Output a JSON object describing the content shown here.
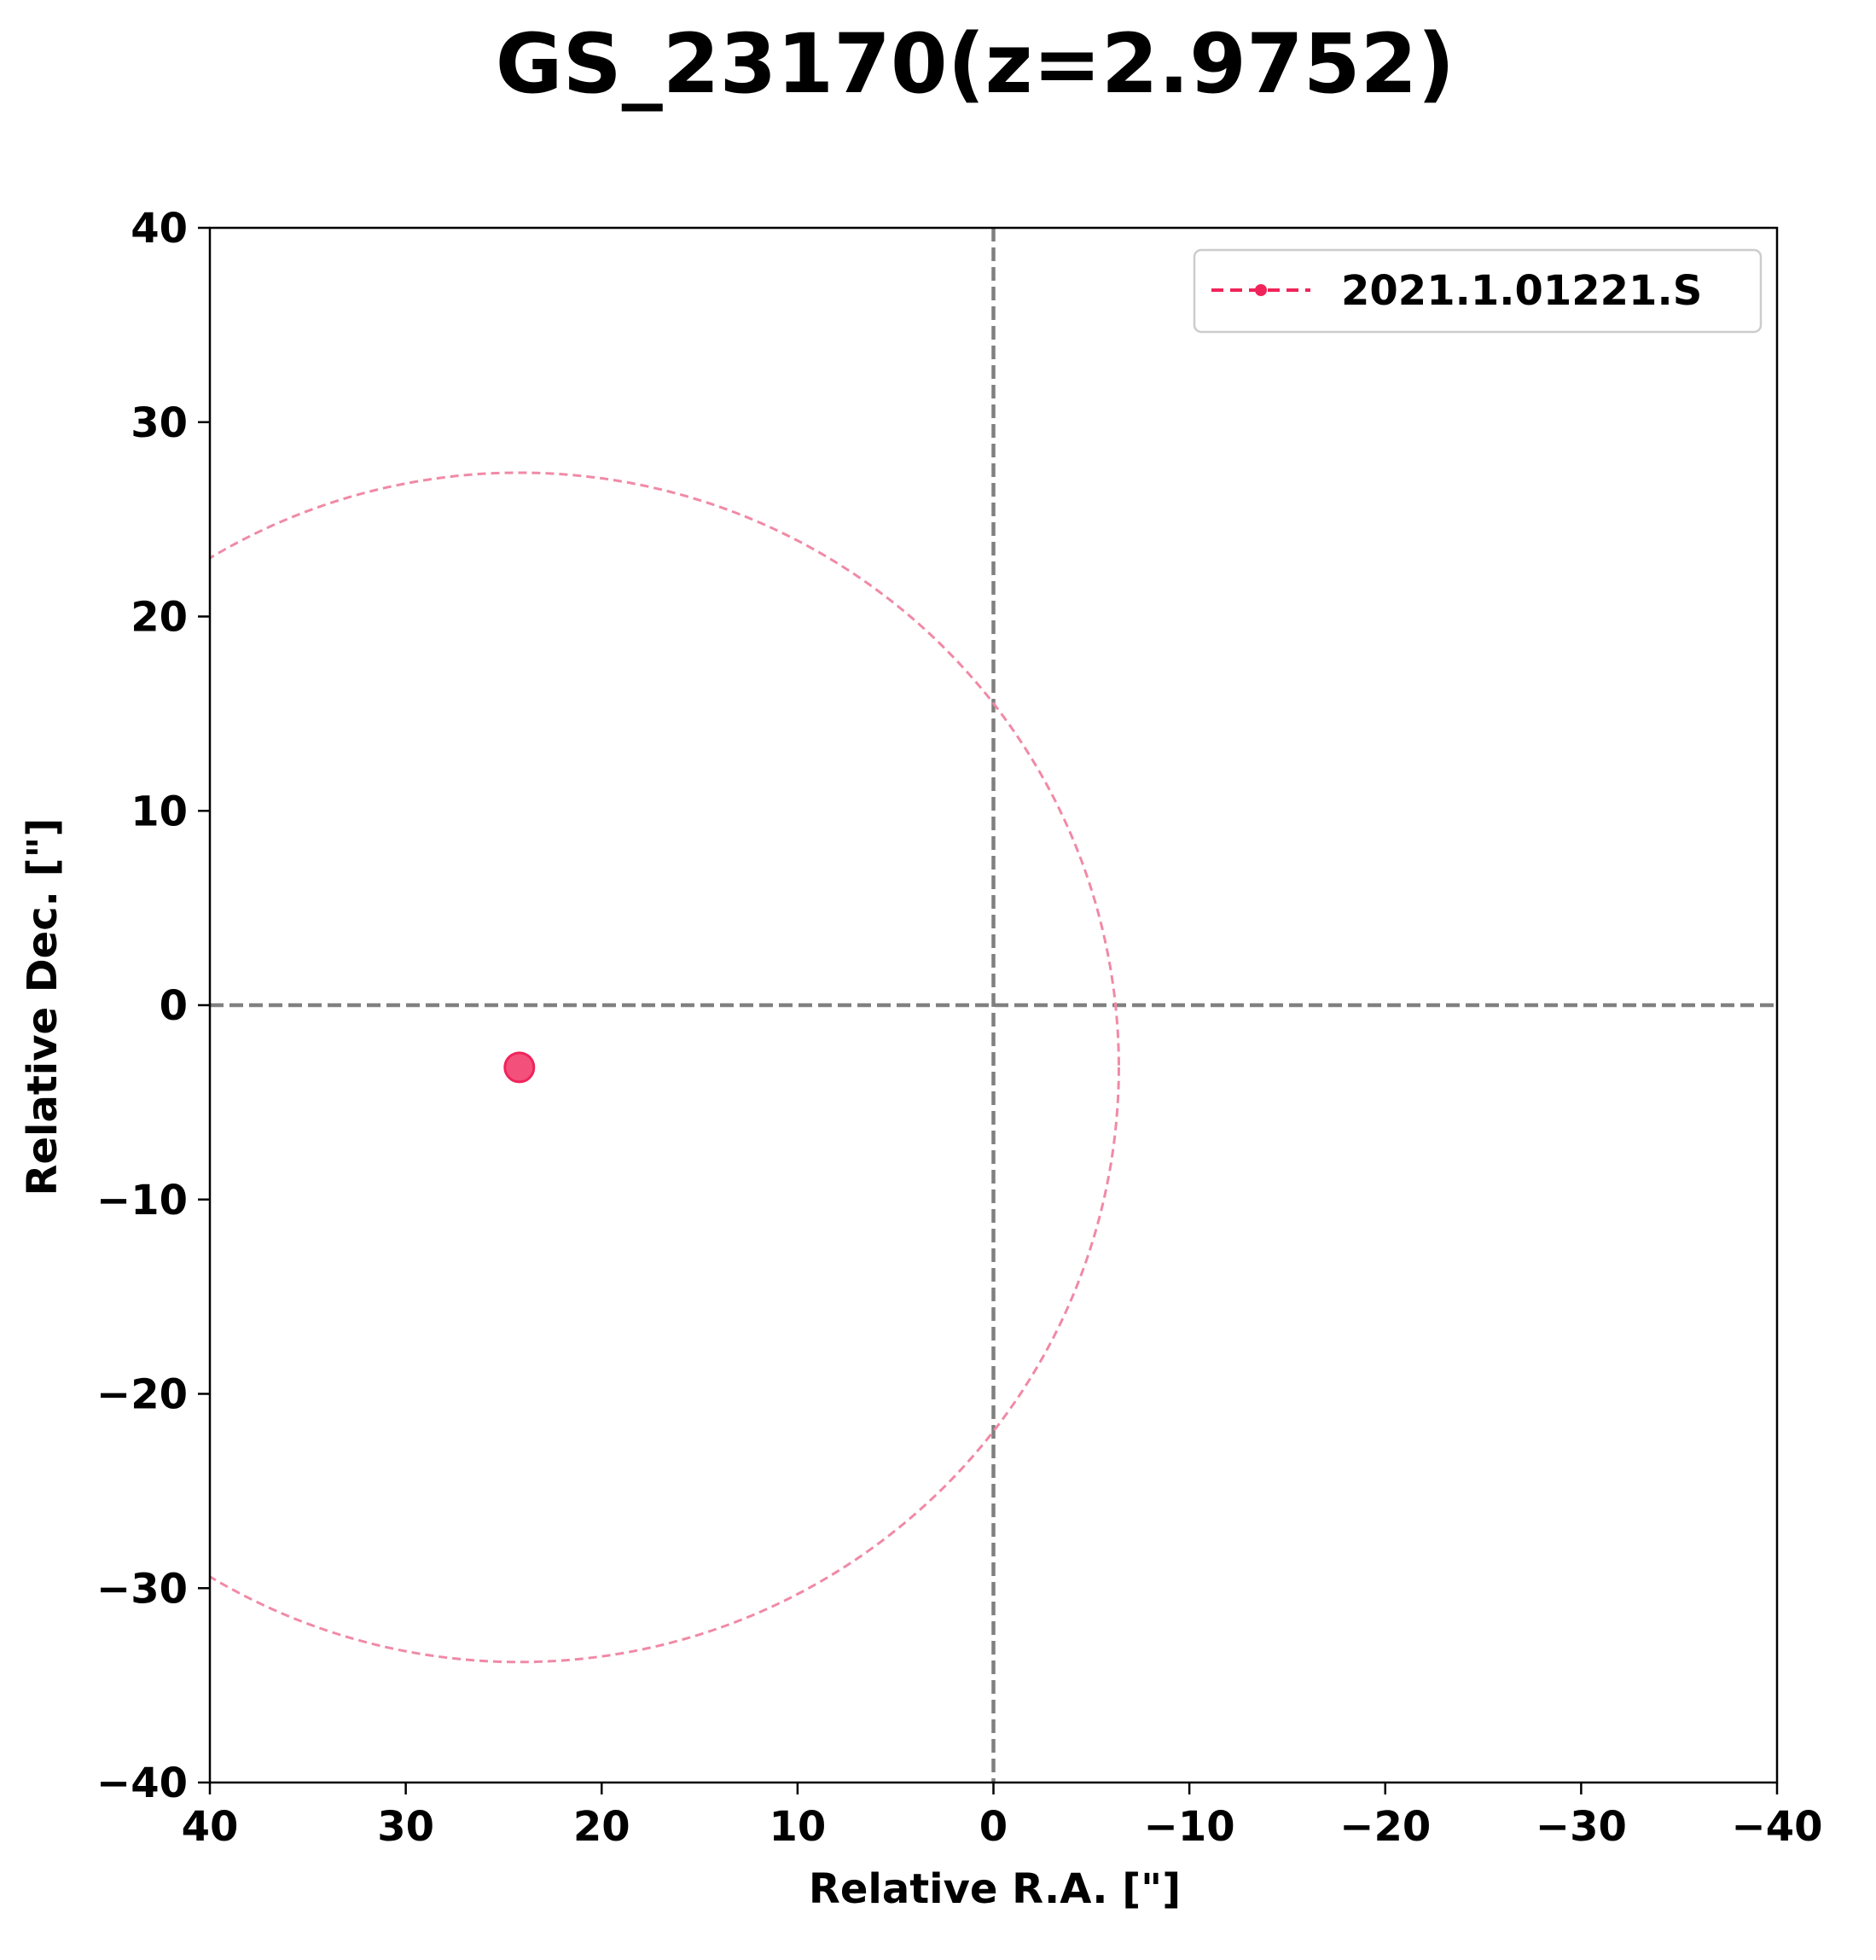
{
  "chart_data": {
    "type": "scatter",
    "title": "GS_23170(z=2.9752)",
    "xlabel": "Relative R.A. [\"]",
    "ylabel": "Relative Dec. [\"]",
    "xlim": [
      40,
      -40
    ],
    "ylim": [
      -40,
      40
    ],
    "x_inverted": true,
    "xticks": [
      40,
      30,
      20,
      10,
      0,
      -10,
      -20,
      -30,
      -40
    ],
    "yticks": [
      40,
      30,
      20,
      10,
      0,
      -10,
      -20,
      -30,
      -40
    ],
    "xtick_labels": [
      "40",
      "30",
      "20",
      "10",
      "0",
      "−10",
      "−20",
      "−30",
      "−40"
    ],
    "ytick_labels": [
      "40",
      "30",
      "20",
      "10",
      "0",
      "−10",
      "−20",
      "−30",
      "−40"
    ],
    "grid": false,
    "reference_lines": [
      {
        "orientation": "vertical",
        "value": 0,
        "color": "#808080",
        "style": "dashed"
      },
      {
        "orientation": "horizontal",
        "value": 0,
        "color": "#808080",
        "style": "dashed"
      }
    ],
    "legend_position": "top-right",
    "series": [
      {
        "name": "2021.1.01221.S",
        "color": "#f0245a",
        "points": [
          {
            "x": 24.2,
            "y": -3.2
          }
        ],
        "circle": {
          "center_x": 24.2,
          "center_y": -3.2,
          "radius": 30.6,
          "color": "#f08aa6",
          "style": "dashed"
        }
      }
    ]
  }
}
